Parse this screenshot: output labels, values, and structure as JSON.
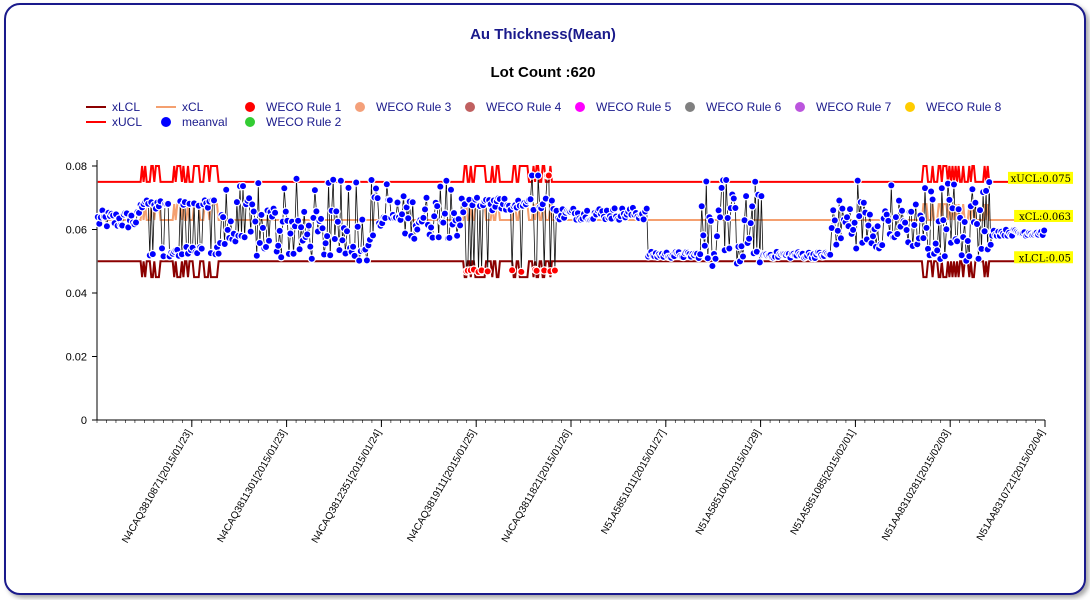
{
  "title": "Au Thickness(Mean)",
  "subtitle": "Lot Count :620",
  "colors": {
    "lcl": "#8b0000",
    "ucl": "#ff0000",
    "cl": "#f4a070",
    "meanval": "#0000ff",
    "rule1": "#ff0000",
    "rule2": "#33cc33",
    "rule3": "#f4a07a",
    "rule4": "#c06060",
    "rule5": "#ff00ff",
    "rule6": "#808080",
    "rule7": "#bb55dd",
    "rule8": "#ffcc00"
  },
  "legend": [
    {
      "label": "xLCL",
      "kind": "line",
      "color_key": "lcl"
    },
    {
      "label": "xUCL",
      "kind": "line",
      "color_key": "ucl"
    },
    {
      "label": "xCL",
      "kind": "line",
      "color_key": "cl"
    },
    {
      "label": "meanval",
      "kind": "dot",
      "color_key": "meanval"
    },
    {
      "label": "WECO Rule 1",
      "kind": "dot",
      "color_key": "rule1"
    },
    {
      "label": "WECO Rule 2",
      "kind": "dot",
      "color_key": "rule2"
    },
    {
      "label": "WECO Rule 3",
      "kind": "dot",
      "color_key": "rule3"
    },
    {
      "label": "WECO Rule 4",
      "kind": "dot",
      "color_key": "rule4"
    },
    {
      "label": "WECO Rule 5",
      "kind": "dot",
      "color_key": "rule5"
    },
    {
      "label": "WECO Rule 6",
      "kind": "dot",
      "color_key": "rule6"
    },
    {
      "label": "WECO Rule 7",
      "kind": "dot",
      "color_key": "rule7"
    },
    {
      "label": "WECO Rule 8",
      "kind": "dot",
      "color_key": "rule8"
    }
  ],
  "chart_data": {
    "type": "line",
    "title": "Au Thickness(Mean)",
    "subtitle": "Lot Count :620",
    "lot_count": 620,
    "ylim": [
      0,
      0.08
    ],
    "y_ticks": [
      "0",
      "0.02",
      "0.04",
      "0.06",
      "0.08"
    ],
    "x_tick_labels": [
      "N4CAQ3810871[2015/01/23]",
      "N4CAQ3811301[2015/01/23]",
      "N4CAQ3812351[2015/01/24]",
      "N4CAQ3819111[2015/01/25]",
      "N4CAQ3811821[2015/01/26]",
      "N51A5851011[2015/01/27]",
      "N51A5851001[2015/01/29]",
      "N51A5851085[2015/02/01]",
      "N51AA8310281[2015/02/03]",
      "N51AA8310721[2015/02/04]"
    ],
    "limit_labels": {
      "ucl": "xUCL:0.075",
      "cl": "xCL:0.063",
      "lcl": "xLCL:0.05"
    },
    "limits": {
      "ucl": 0.075,
      "cl": 0.063,
      "lcl": 0.05
    },
    "limit_spikes": {
      "ucl": 0.08,
      "cl": 0.068,
      "lcl": 0.045
    },
    "segments": [
      {
        "from": 0,
        "to": 28,
        "mode": "steady",
        "center": 0.063,
        "spread": 0.006,
        "spike": false
      },
      {
        "from": 28,
        "to": 80,
        "mode": "alternate",
        "high": 0.068,
        "low": 0.053,
        "spike": true
      },
      {
        "from": 80,
        "to": 130,
        "mode": "mixed",
        "center": 0.06,
        "spread": 0.01,
        "spike": false
      },
      {
        "from": 130,
        "to": 180,
        "mode": "mixed",
        "center": 0.058,
        "spread": 0.008,
        "spike": false
      },
      {
        "from": 180,
        "to": 240,
        "mode": "mixed",
        "center": 0.064,
        "spread": 0.007,
        "spike": false
      },
      {
        "from": 240,
        "to": 300,
        "mode": "violate",
        "high": 0.068,
        "low": 0.047,
        "spike": true
      },
      {
        "from": 300,
        "to": 360,
        "mode": "steady",
        "center": 0.065,
        "spread": 0.004,
        "spike": false
      },
      {
        "from": 360,
        "to": 395,
        "mode": "steady",
        "center": 0.052,
        "spread": 0.002,
        "spike": false
      },
      {
        "from": 395,
        "to": 435,
        "mode": "mixed",
        "center": 0.06,
        "spread": 0.012,
        "spike": false
      },
      {
        "from": 435,
        "to": 480,
        "mode": "steady",
        "center": 0.052,
        "spread": 0.002,
        "spike": false
      },
      {
        "from": 480,
        "to": 540,
        "mode": "mixed",
        "center": 0.062,
        "spread": 0.008,
        "spike": false
      },
      {
        "from": 540,
        "to": 585,
        "mode": "mixed",
        "center": 0.062,
        "spread": 0.012,
        "spike": true
      },
      {
        "from": 585,
        "to": 620,
        "mode": "steady",
        "center": 0.059,
        "spread": 0.002,
        "spike": false
      }
    ]
  }
}
